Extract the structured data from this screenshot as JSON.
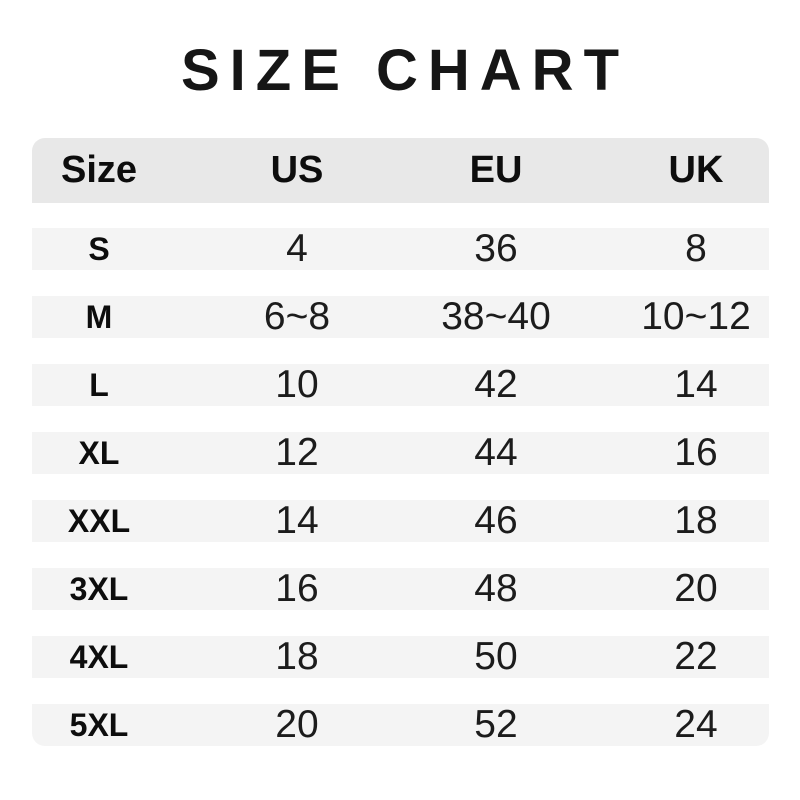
{
  "title": "SIZE CHART",
  "chart_data": {
    "type": "table",
    "title": "SIZE CHART",
    "columns": [
      "Size",
      "US",
      "EU",
      "UK"
    ],
    "rows": [
      [
        "S",
        "4",
        "36",
        "8"
      ],
      [
        "M",
        "6~8",
        "38~40",
        "10~12"
      ],
      [
        "L",
        "10",
        "42",
        "14"
      ],
      [
        "XL",
        "12",
        "44",
        "16"
      ],
      [
        "XXL",
        "14",
        "46",
        "18"
      ],
      [
        "3XL",
        "16",
        "48",
        "20"
      ],
      [
        "4XL",
        "18",
        "50",
        "22"
      ],
      [
        "5XL",
        "20",
        "52",
        "24"
      ]
    ],
    "layout": {
      "legend": "none",
      "grid": "off",
      "row_style": "striped-bands",
      "header_position": "top"
    }
  },
  "colors": {
    "background": "#ffffff",
    "header_bg": "#e8e8e8",
    "row_bg": "#f4f4f4",
    "text": "#161616"
  }
}
